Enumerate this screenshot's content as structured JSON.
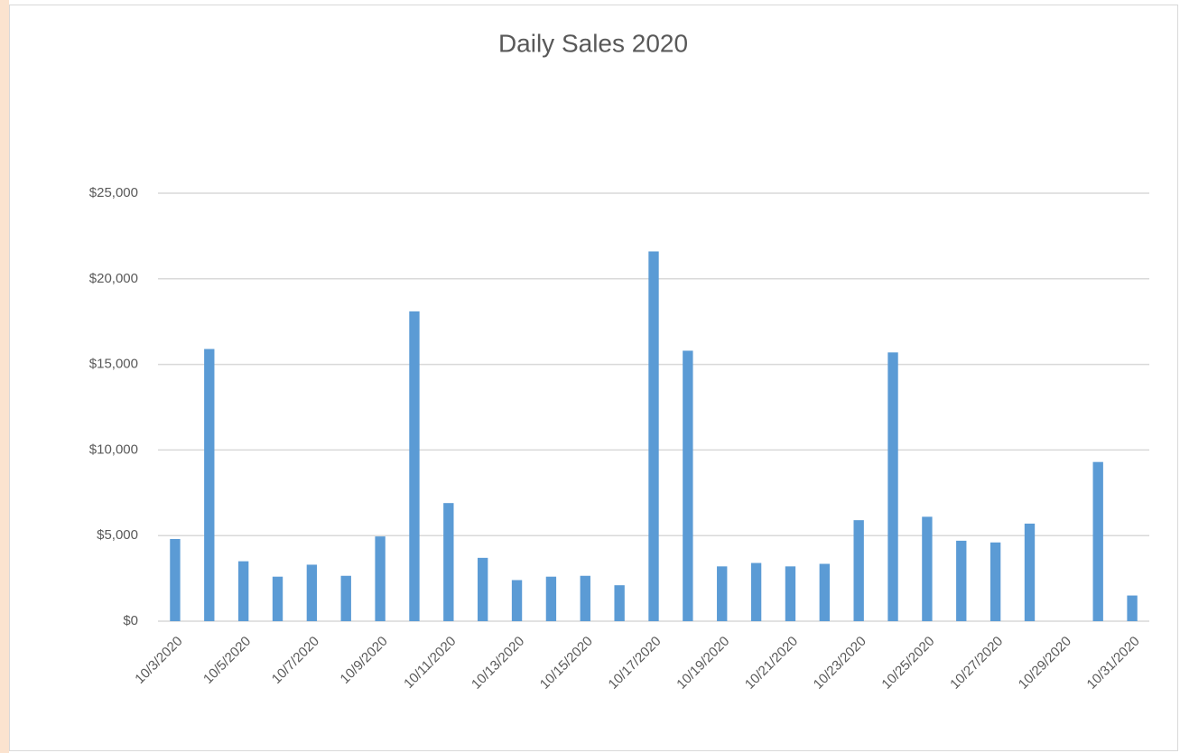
{
  "chart_data": {
    "type": "bar",
    "title": "Daily Sales 2020",
    "categories": [
      "10/3/2020",
      null,
      "10/5/2020",
      null,
      "10/7/2020",
      null,
      "10/9/2020",
      null,
      "10/11/2020",
      null,
      "10/13/2020",
      null,
      "10/15/2020",
      null,
      "10/17/2020",
      null,
      "10/19/2020",
      null,
      "10/21/2020",
      null,
      "10/23/2020",
      null,
      "10/25/2020",
      null,
      "10/27/2020",
      null,
      "10/29/2020",
      null,
      "10/31/2020"
    ],
    "values": [
      4800,
      15900,
      3500,
      2600,
      3300,
      2650,
      4950,
      18100,
      6900,
      3700,
      2400,
      2600,
      2650,
      2100,
      21600,
      15800,
      3200,
      3400,
      3200,
      3350,
      5900,
      15700,
      6100,
      4700,
      4600,
      5700,
      0,
      9300,
      1500
    ],
    "color": "#5b9bd5",
    "ylim": [
      0,
      25000
    ],
    "yticks": [
      {
        "value": 0,
        "label": "$0"
      },
      {
        "value": 5000,
        "label": "$5,000"
      },
      {
        "value": 10000,
        "label": "$10,000"
      },
      {
        "value": 15000,
        "label": "$15,000"
      },
      {
        "value": 20000,
        "label": "$20,000"
      },
      {
        "value": 25000,
        "label": "$25,000"
      }
    ],
    "grid": true
  }
}
